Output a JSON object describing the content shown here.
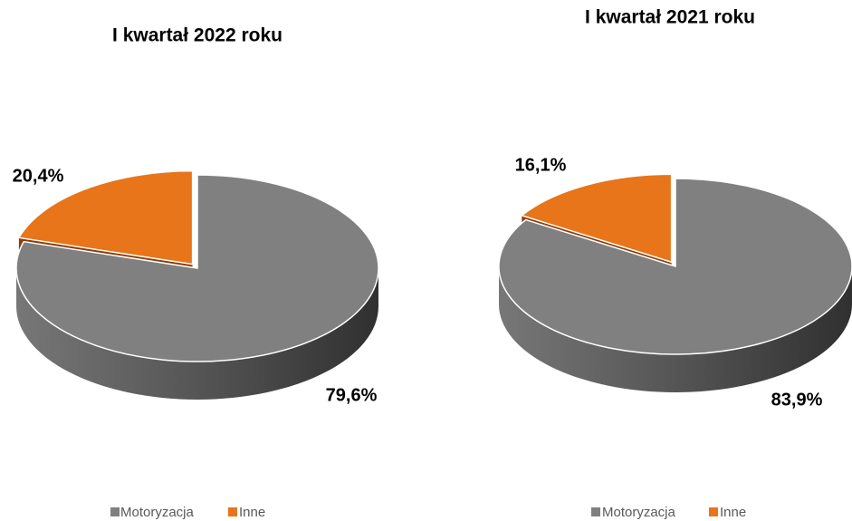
{
  "chart_data": [
    {
      "type": "pie",
      "title": "I kwartał 2022 roku",
      "categories": [
        "Motoryzacja",
        "Inne"
      ],
      "values": [
        79.6,
        20.4
      ],
      "value_labels": [
        "79,6%",
        "20,4%"
      ],
      "colors": [
        "#808080",
        "#e8751a"
      ]
    },
    {
      "type": "pie",
      "title": "I kwartał 2021 roku",
      "categories": [
        "Motoryzacja",
        "Inne"
      ],
      "values": [
        83.9,
        16.1
      ],
      "value_labels": [
        "83,9%",
        "16,1%"
      ],
      "colors": [
        "#808080",
        "#e8751a"
      ]
    }
  ]
}
